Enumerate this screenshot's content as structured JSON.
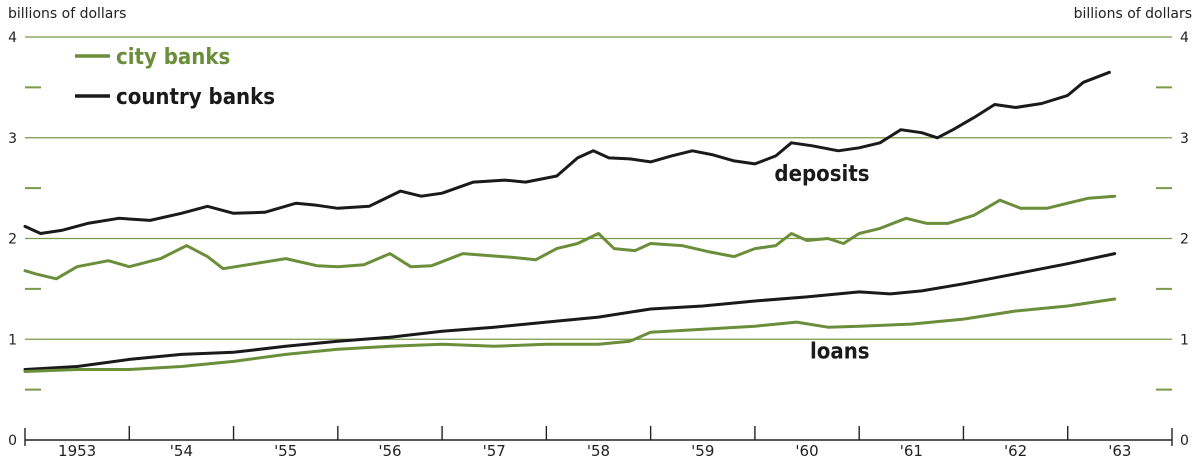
{
  "chart_data": {
    "type": "line",
    "ylabel_left": "billions of dollars",
    "ylabel_right": "billions of dollars",
    "ylim": [
      0,
      4
    ],
    "yticks": [
      "0",
      "1",
      "2",
      "3",
      "4"
    ],
    "x_ticks": [
      "1953",
      "'54",
      "'55",
      "'56",
      "'57",
      "'58",
      "'59",
      "'60",
      "'61",
      "'62",
      "'63"
    ],
    "xlim": [
      1953.0,
      1964.0
    ],
    "grid": true,
    "legend": {
      "position": "top-left",
      "entries": [
        "city banks",
        "country banks"
      ]
    },
    "colors": {
      "city banks": "#6b8e3a",
      "country banks": "#1a1a1a",
      "grid": "#7a9a4a"
    },
    "annotations": [
      "deposits",
      "loans"
    ],
    "series": [
      {
        "name": "country banks",
        "group": "deposits",
        "points": [
          [
            1953.0,
            2.12
          ],
          [
            1953.15,
            2.05
          ],
          [
            1953.35,
            2.08
          ],
          [
            1953.6,
            2.15
          ],
          [
            1953.9,
            2.2
          ],
          [
            1954.2,
            2.18
          ],
          [
            1954.5,
            2.25
          ],
          [
            1954.75,
            2.32
          ],
          [
            1955.0,
            2.25
          ],
          [
            1955.3,
            2.26
          ],
          [
            1955.6,
            2.35
          ],
          [
            1955.8,
            2.33
          ],
          [
            1956.0,
            2.3
          ],
          [
            1956.3,
            2.32
          ],
          [
            1956.6,
            2.47
          ],
          [
            1956.8,
            2.42
          ],
          [
            1957.0,
            2.45
          ],
          [
            1957.3,
            2.56
          ],
          [
            1957.6,
            2.58
          ],
          [
            1957.8,
            2.56
          ],
          [
            1958.1,
            2.62
          ],
          [
            1958.3,
            2.8
          ],
          [
            1958.45,
            2.87
          ],
          [
            1958.6,
            2.8
          ],
          [
            1958.8,
            2.79
          ],
          [
            1959.0,
            2.76
          ],
          [
            1959.2,
            2.82
          ],
          [
            1959.4,
            2.87
          ],
          [
            1959.6,
            2.83
          ],
          [
            1959.8,
            2.77
          ],
          [
            1960.0,
            2.74
          ],
          [
            1960.2,
            2.82
          ],
          [
            1960.35,
            2.95
          ],
          [
            1960.55,
            2.92
          ],
          [
            1960.8,
            2.87
          ],
          [
            1961.0,
            2.9
          ],
          [
            1961.2,
            2.95
          ],
          [
            1961.4,
            3.08
          ],
          [
            1961.6,
            3.05
          ],
          [
            1961.75,
            3.0
          ],
          [
            1961.9,
            3.08
          ],
          [
            1962.1,
            3.2
          ],
          [
            1962.3,
            3.33
          ],
          [
            1962.5,
            3.3
          ],
          [
            1962.75,
            3.34
          ],
          [
            1963.0,
            3.42
          ],
          [
            1963.15,
            3.55
          ],
          [
            1963.4,
            3.65
          ]
        ]
      },
      {
        "name": "city banks",
        "group": "deposits",
        "points": [
          [
            1953.0,
            1.68
          ],
          [
            1953.1,
            1.65
          ],
          [
            1953.3,
            1.6
          ],
          [
            1953.5,
            1.72
          ],
          [
            1953.8,
            1.78
          ],
          [
            1954.0,
            1.72
          ],
          [
            1954.3,
            1.8
          ],
          [
            1954.55,
            1.93
          ],
          [
            1954.75,
            1.82
          ],
          [
            1954.9,
            1.7
          ],
          [
            1955.2,
            1.75
          ],
          [
            1955.5,
            1.8
          ],
          [
            1955.8,
            1.73
          ],
          [
            1956.0,
            1.72
          ],
          [
            1956.25,
            1.74
          ],
          [
            1956.5,
            1.85
          ],
          [
            1956.7,
            1.72
          ],
          [
            1956.9,
            1.73
          ],
          [
            1957.2,
            1.85
          ],
          [
            1957.45,
            1.83
          ],
          [
            1957.7,
            1.81
          ],
          [
            1957.9,
            1.79
          ],
          [
            1958.1,
            1.9
          ],
          [
            1958.3,
            1.95
          ],
          [
            1958.5,
            2.05
          ],
          [
            1958.65,
            1.9
          ],
          [
            1958.85,
            1.88
          ],
          [
            1959.0,
            1.95
          ],
          [
            1959.3,
            1.93
          ],
          [
            1959.55,
            1.87
          ],
          [
            1959.8,
            1.82
          ],
          [
            1960.0,
            1.9
          ],
          [
            1960.2,
            1.93
          ],
          [
            1960.35,
            2.05
          ],
          [
            1960.5,
            1.98
          ],
          [
            1960.7,
            2.0
          ],
          [
            1960.85,
            1.95
          ],
          [
            1961.0,
            2.05
          ],
          [
            1961.2,
            2.1
          ],
          [
            1961.45,
            2.2
          ],
          [
            1961.65,
            2.15
          ],
          [
            1961.85,
            2.15
          ],
          [
            1962.1,
            2.23
          ],
          [
            1962.35,
            2.38
          ],
          [
            1962.55,
            2.3
          ],
          [
            1962.8,
            2.3
          ],
          [
            1963.0,
            2.35
          ],
          [
            1963.2,
            2.4
          ],
          [
            1963.45,
            2.42
          ]
        ]
      },
      {
        "name": "country banks",
        "group": "loans",
        "points": [
          [
            1953.0,
            0.7
          ],
          [
            1953.5,
            0.73
          ],
          [
            1954.0,
            0.8
          ],
          [
            1954.5,
            0.85
          ],
          [
            1955.0,
            0.87
          ],
          [
            1955.5,
            0.93
          ],
          [
            1956.0,
            0.98
          ],
          [
            1956.5,
            1.02
          ],
          [
            1957.0,
            1.08
          ],
          [
            1957.5,
            1.12
          ],
          [
            1958.0,
            1.17
          ],
          [
            1958.5,
            1.22
          ],
          [
            1959.0,
            1.3
          ],
          [
            1959.5,
            1.33
          ],
          [
            1960.0,
            1.38
          ],
          [
            1960.5,
            1.42
          ],
          [
            1961.0,
            1.47
          ],
          [
            1961.3,
            1.45
          ],
          [
            1961.6,
            1.48
          ],
          [
            1962.0,
            1.55
          ],
          [
            1962.5,
            1.65
          ],
          [
            1963.0,
            1.75
          ],
          [
            1963.45,
            1.85
          ]
        ]
      },
      {
        "name": "city banks",
        "group": "loans",
        "points": [
          [
            1953.0,
            0.68
          ],
          [
            1953.5,
            0.7
          ],
          [
            1954.0,
            0.7
          ],
          [
            1954.5,
            0.73
          ],
          [
            1955.0,
            0.78
          ],
          [
            1955.5,
            0.85
          ],
          [
            1956.0,
            0.9
          ],
          [
            1956.5,
            0.93
          ],
          [
            1957.0,
            0.95
          ],
          [
            1957.5,
            0.93
          ],
          [
            1958.0,
            0.95
          ],
          [
            1958.5,
            0.95
          ],
          [
            1958.8,
            0.98
          ],
          [
            1959.0,
            1.07
          ],
          [
            1959.5,
            1.1
          ],
          [
            1960.0,
            1.13
          ],
          [
            1960.4,
            1.17
          ],
          [
            1960.7,
            1.12
          ],
          [
            1961.0,
            1.13
          ],
          [
            1961.5,
            1.15
          ],
          [
            1962.0,
            1.2
          ],
          [
            1962.5,
            1.28
          ],
          [
            1963.0,
            1.33
          ],
          [
            1963.45,
            1.4
          ]
        ]
      }
    ]
  }
}
